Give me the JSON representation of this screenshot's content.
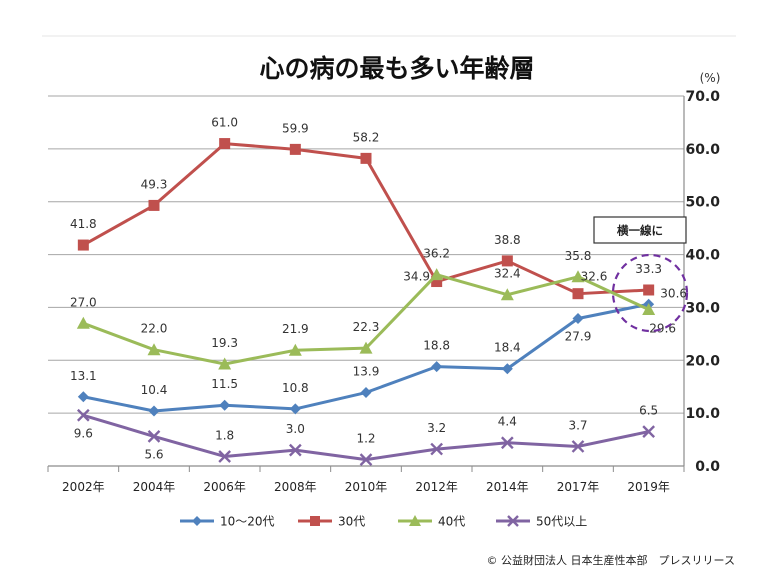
{
  "title": "心の病の最も多い年齢層",
  "unit_label": "(%)",
  "credit": "© 公益財団法人 日本生産性本部　プレスリリース",
  "callout": "横一線に",
  "colors": {
    "s1": "#4f81bd",
    "s2": "#c0504d",
    "s3": "#9bbb59",
    "s4": "#8064a2",
    "callout_circle": "#7030a0"
  },
  "chart_data": {
    "type": "line",
    "title": "心の病の最も多い年齢層",
    "xlabel": "",
    "ylabel": "(%)",
    "ylim": [
      0,
      70
    ],
    "ytick_labels": [
      "0.0",
      "10.0",
      "20.0",
      "30.0",
      "40.0",
      "50.0",
      "60.0",
      "70.0"
    ],
    "categories": [
      "2002年",
      "2004年",
      "2006年",
      "2008年",
      "2010年",
      "2012年",
      "2014年",
      "2017年",
      "2019年"
    ],
    "series": [
      {
        "name": "10～20代",
        "values": [
          13.1,
          10.4,
          11.5,
          10.8,
          13.9,
          18.8,
          18.4,
          27.9,
          30.6
        ],
        "labels": [
          "13.1",
          "10.4",
          "11.5",
          "10.8",
          "13.9",
          "18.8",
          "18.4",
          "27.9",
          "30.6"
        ]
      },
      {
        "name": "30代",
        "values": [
          41.8,
          49.3,
          61.0,
          59.9,
          58.2,
          34.9,
          38.8,
          32.6,
          33.3
        ],
        "labels": [
          "41.8",
          "49.3",
          "61.0",
          "59.9",
          "58.2",
          "34.9",
          "38.8",
          "32.6",
          "33.3"
        ]
      },
      {
        "name": "40代",
        "values": [
          27.0,
          22.0,
          19.3,
          21.9,
          22.3,
          36.2,
          32.4,
          35.8,
          29.6
        ],
        "labels": [
          "27.0",
          "22.0",
          "19.3",
          "21.9",
          "22.3",
          "36.2",
          "32.4",
          "35.8",
          "29.6"
        ]
      },
      {
        "name": "50代以上",
        "values": [
          9.6,
          5.6,
          1.8,
          3.0,
          1.2,
          3.2,
          4.4,
          3.7,
          6.5
        ],
        "labels": [
          "9.6",
          "5.6",
          "1.8",
          "3.0",
          "1.2",
          "3.2",
          "4.4",
          "3.7",
          "6.5"
        ]
      }
    ],
    "legend_position": "bottom",
    "grid": true
  }
}
